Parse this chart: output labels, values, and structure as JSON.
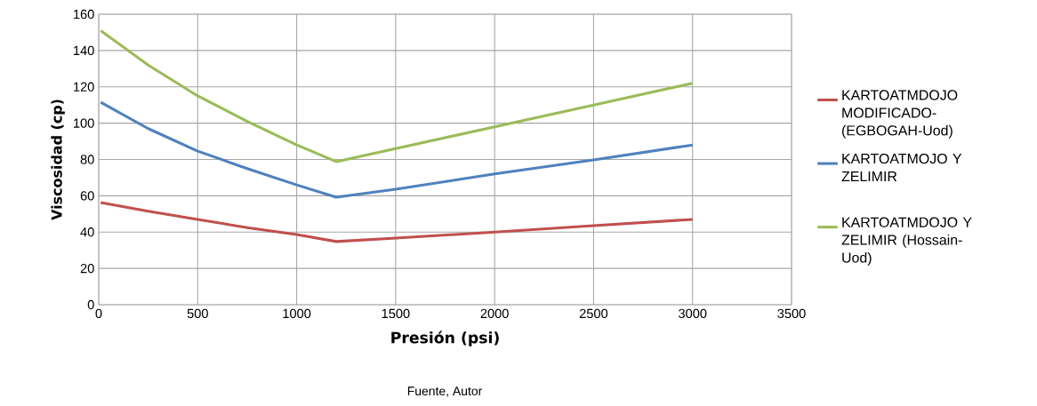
{
  "chart_data": {
    "type": "line",
    "xlabel": "Presión (psi)",
    "ylabel": "Viscosidad (cp)",
    "annotations": [
      "Fuente, Autor"
    ],
    "xlim": [
      0,
      3500
    ],
    "xticks": [
      0,
      500,
      1000,
      1500,
      2000,
      2500,
      3000,
      3500
    ],
    "ylim": [
      0,
      160
    ],
    "yticks": [
      0,
      20,
      40,
      60,
      80,
      100,
      120,
      140,
      160
    ],
    "grid": true,
    "legend": "right",
    "marker": "none",
    "line_style": "solid",
    "x": [
      10,
      250,
      500,
      750,
      1000,
      1200,
      1500,
      2000,
      2500,
      3000
    ],
    "series": [
      {
        "name": "KARTOATMDOJO MODIFICADO-(EGBOGAH-Uod)",
        "color": "#c0504d",
        "values": [
          56.3,
          51.5,
          47,
          42.5,
          38.6,
          34.8,
          36.7,
          40,
          43.5,
          47
        ]
      },
      {
        "name": "KARTOATMOJO Y ZELIMIR",
        "color": "#4f81bd",
        "values": [
          111.5,
          97,
          84.6,
          75,
          66,
          59.2,
          63.6,
          72,
          79.7,
          88
        ]
      },
      {
        "name": "KARTOATMDOJO Y ZELIMIR (Hossain-Uod)",
        "color": "#9bbb59",
        "values": [
          151,
          132,
          115,
          101,
          88,
          78.8,
          86,
          98,
          110,
          122
        ]
      }
    ]
  }
}
